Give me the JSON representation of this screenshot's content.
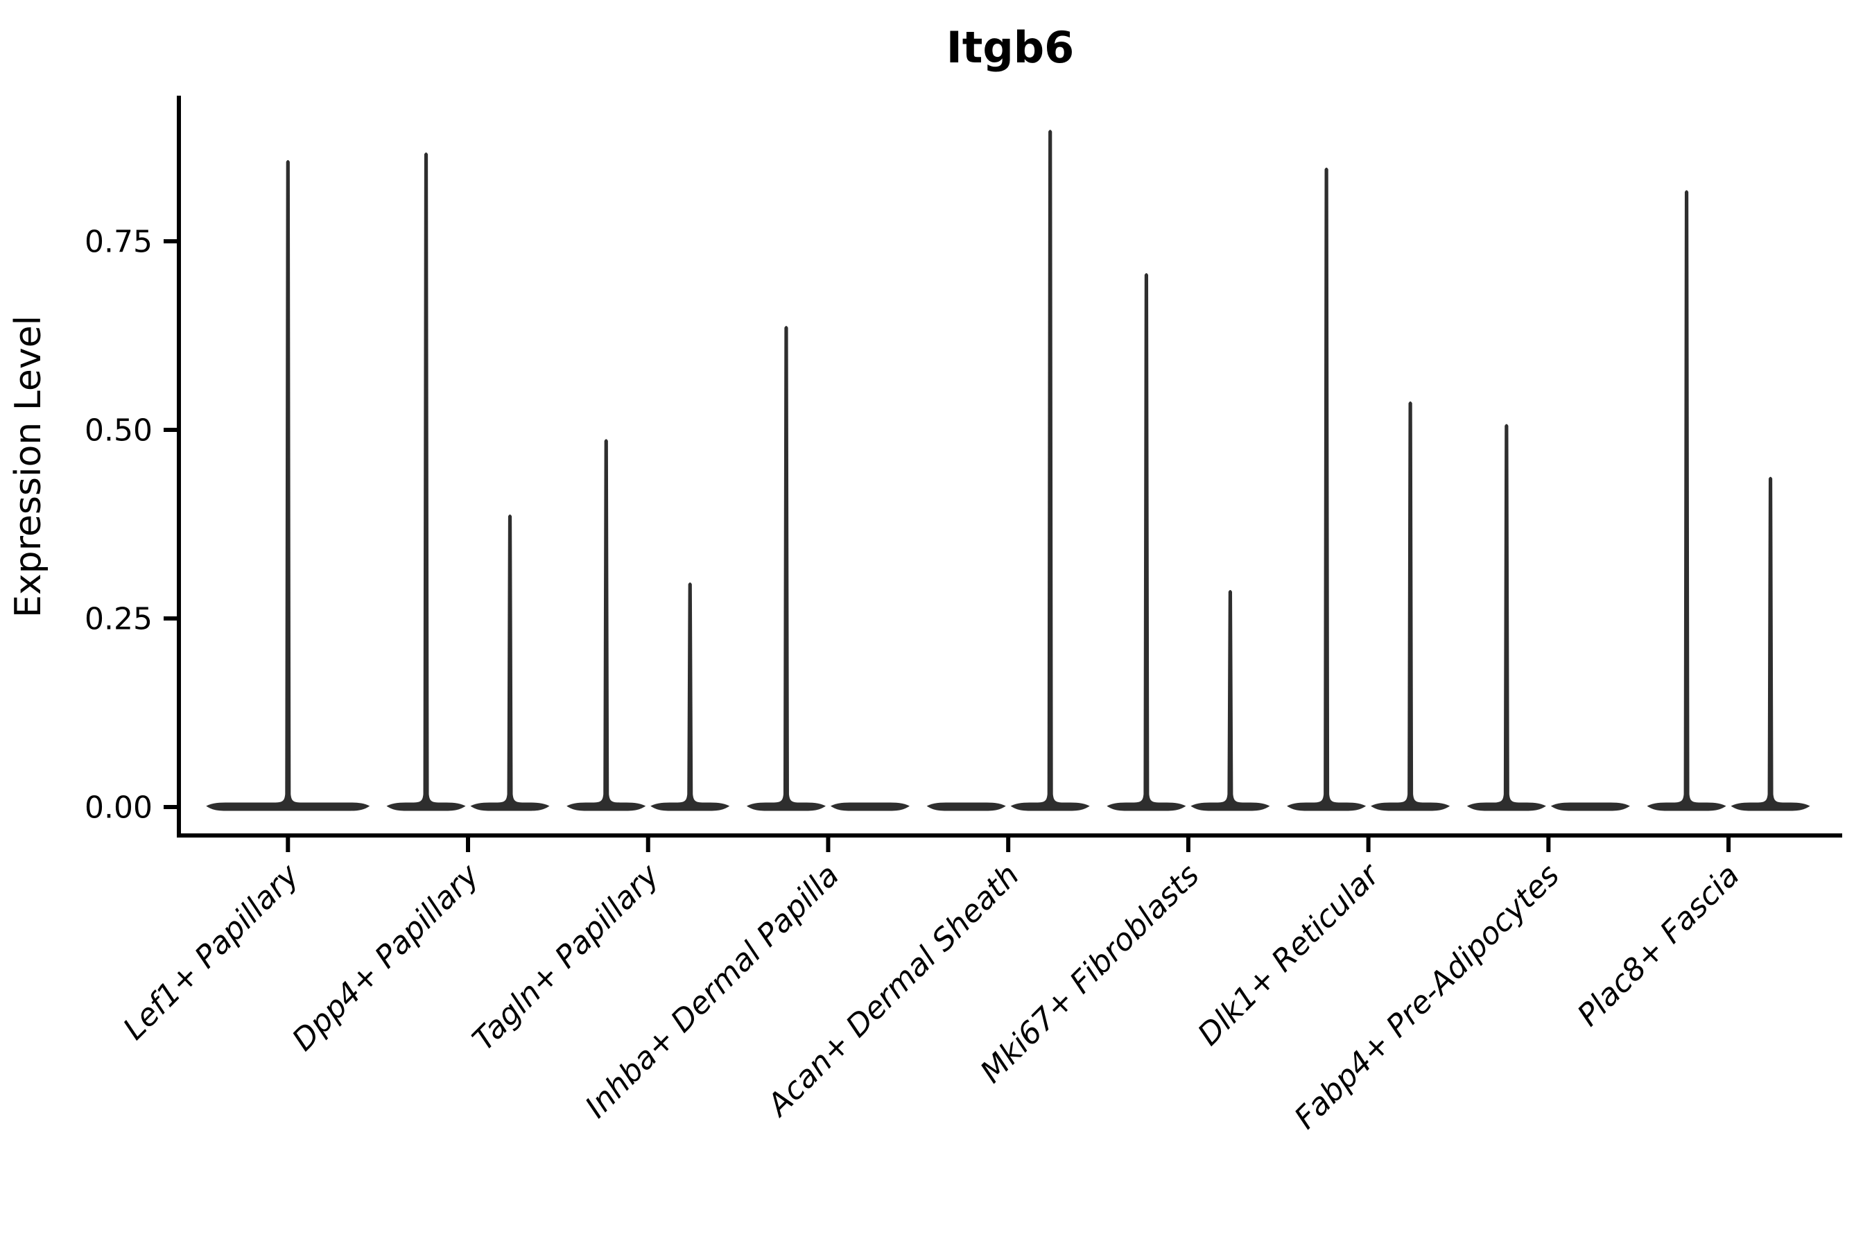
{
  "chart_data": {
    "type": "violin",
    "title": "Itgb6",
    "xlabel": "",
    "ylabel": "Expression Level",
    "ytick_labels": [
      "0.00",
      "0.25",
      "0.50",
      "0.75"
    ],
    "ytick_values": [
      0.0,
      0.25,
      0.5,
      0.75
    ],
    "ylim": [
      -0.04,
      0.94
    ],
    "grid": "off",
    "legend": "none",
    "categories": [
      "Lef1+ Papillary",
      "Dpp4+ Papillary",
      "Tagln+ Papillary",
      "Inhba+ Dermal Papilla",
      "Acan+ Dermal Sheath",
      "Mki67+ Fibroblasts",
      "Dlk1+ Reticular",
      "Fabp4+ Pre-Adipocytes",
      "Plac8+ Fascia"
    ],
    "violins": [
      {
        "cat": 0,
        "category": "Lef1+ Papillary",
        "position": "full",
        "max": 0.86
      },
      {
        "cat": 1,
        "category": "Dpp4+ Papillary",
        "position": "left",
        "max": 0.87
      },
      {
        "cat": 1,
        "category": "Dpp4+ Papillary",
        "position": "right",
        "max": 0.39
      },
      {
        "cat": 2,
        "category": "Tagln+ Papillary",
        "position": "left",
        "max": 0.49
      },
      {
        "cat": 2,
        "category": "Tagln+ Papillary",
        "position": "right",
        "max": 0.3
      },
      {
        "cat": 3,
        "category": "Inhba+ Dermal Papilla",
        "position": "left",
        "max": 0.64
      },
      {
        "cat": 3,
        "category": "Inhba+ Dermal Papilla",
        "position": "right",
        "max": 0.0
      },
      {
        "cat": 4,
        "category": "Acan+ Dermal Sheath",
        "position": "left",
        "max": 0.0
      },
      {
        "cat": 4,
        "category": "Acan+ Dermal Sheath",
        "position": "right",
        "max": 0.9
      },
      {
        "cat": 5,
        "category": "Mki67+ Fibroblasts",
        "position": "left",
        "max": 0.71
      },
      {
        "cat": 5,
        "category": "Mki67+ Fibroblasts",
        "position": "right",
        "max": 0.29
      },
      {
        "cat": 6,
        "category": "Dlk1+ Reticular",
        "position": "left",
        "max": 0.85
      },
      {
        "cat": 6,
        "category": "Dlk1+ Reticular",
        "position": "right",
        "max": 0.54
      },
      {
        "cat": 7,
        "category": "Fabp4+ Pre-Adipocytes",
        "position": "left",
        "max": 0.51
      },
      {
        "cat": 7,
        "category": "Fabp4+ Pre-Adipocytes",
        "position": "right",
        "max": 0.0
      },
      {
        "cat": 8,
        "category": "Plac8+ Fascia",
        "position": "left",
        "max": 0.82
      },
      {
        "cat": 8,
        "category": "Plac8+ Fascia",
        "position": "right",
        "max": 0.44
      }
    ],
    "colors": {
      "violin": "#2e2e2e",
      "axis": "#000000",
      "text": "#000000",
      "background": "#ffffff"
    }
  }
}
